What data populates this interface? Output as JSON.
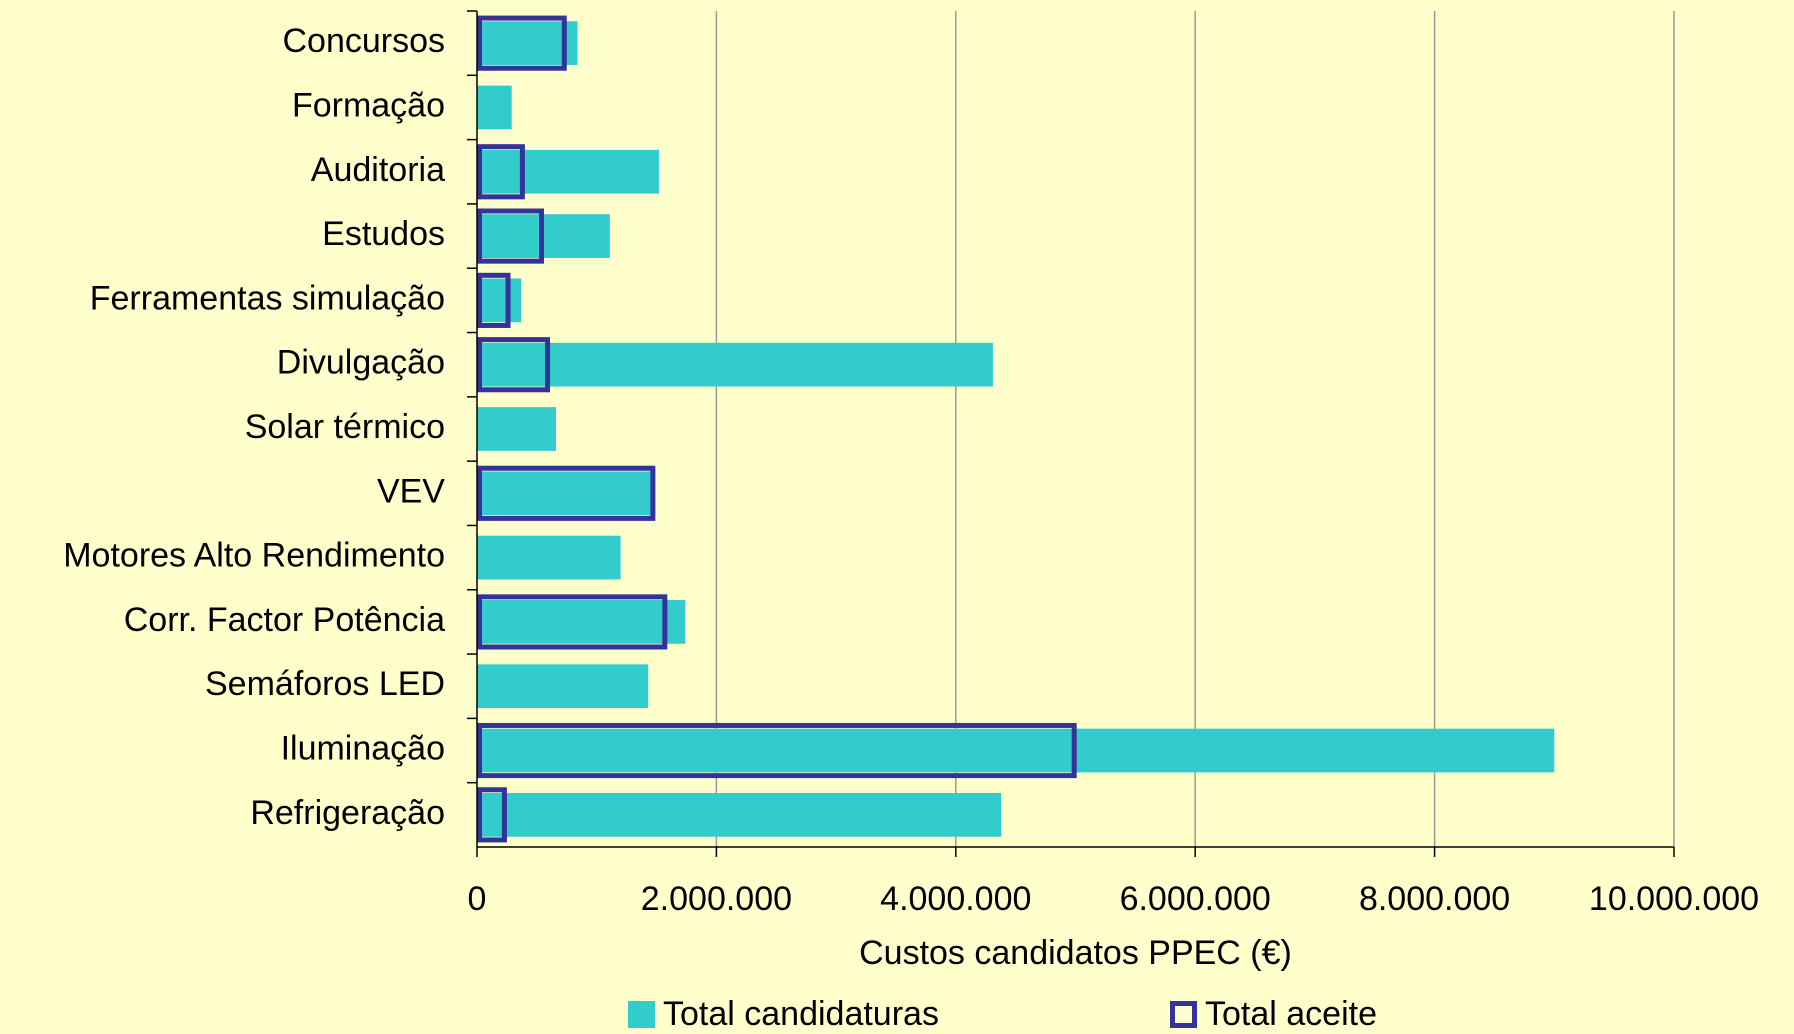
{
  "chart_data": {
    "type": "bar",
    "orientation": "horizontal",
    "x_label": "Custos candidatos PPEC (€)",
    "categories": [
      "Concursos",
      "Formação",
      "Auditoria",
      "Estudos",
      "Ferramentas simulação",
      "Divulgação",
      "Solar térmico",
      "VEV",
      "Motores Alto Rendimento",
      "Corr. Factor Potência",
      "Semáforos LED",
      "Iluminação",
      "Refrigeração"
    ],
    "series": [
      {
        "name": "Total candidaturas",
        "color": "#33cccc",
        "style": "filled",
        "values": [
          840000,
          290000,
          1520000,
          1110000,
          370000,
          4310000,
          660000,
          1490000,
          1200000,
          1740000,
          1430000,
          9000000,
          4380000
        ]
      },
      {
        "name": "Total aceite",
        "color": "#333399",
        "style": "outline",
        "values": [
          750000,
          null,
          400000,
          560000,
          280000,
          610000,
          null,
          1490000,
          null,
          1590000,
          null,
          5010000,
          250000
        ]
      }
    ],
    "xlim": [
      0,
      10000000
    ],
    "xticks": [
      0,
      {
        "value": 2000000,
        "label": "2.000.000"
      },
      {
        "value": 4000000,
        "label": "4.000.000"
      },
      {
        "value": 6000000,
        "label": "6.000.000"
      },
      {
        "value": 8000000,
        "label": "8.000.000"
      },
      {
        "value": 10000000,
        "label": "10.000.000"
      }
    ],
    "grid": true,
    "legend": "bottom"
  }
}
